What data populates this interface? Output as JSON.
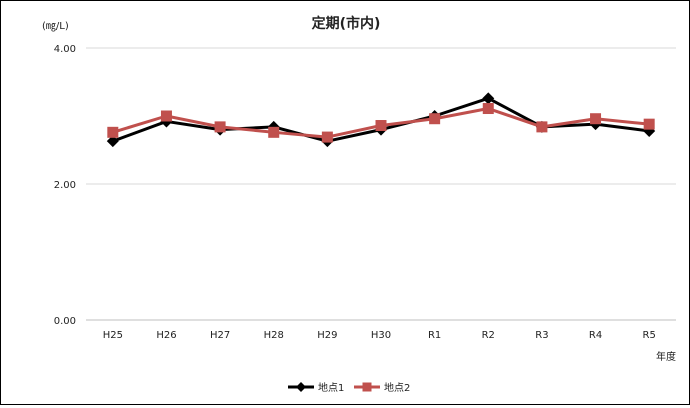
{
  "chart_data": {
    "type": "line",
    "title": "定期(市内)",
    "unit_label": "(㎎/L)",
    "xlabel": "年度",
    "ylabel": "",
    "categories": [
      "H25",
      "H26",
      "H27",
      "H28",
      "H29",
      "H30",
      "R1",
      "R2",
      "R3",
      "R4",
      "R5"
    ],
    "ylim": [
      0,
      4.0
    ],
    "yticks": [
      "0.00",
      "2.00",
      "4.00"
    ],
    "grid": true,
    "legend": "bottom",
    "series": [
      {
        "name": "地点1",
        "color": "#000000",
        "marker": "diamond",
        "values": [
          2.63,
          2.92,
          2.8,
          2.84,
          2.63,
          2.8,
          3.0,
          3.26,
          2.84,
          2.88,
          2.78
        ]
      },
      {
        "name": "地点2",
        "color": "#c0504d",
        "marker": "square",
        "values": [
          2.76,
          3.0,
          2.84,
          2.76,
          2.69,
          2.86,
          2.96,
          3.11,
          2.84,
          2.96,
          2.88
        ]
      }
    ]
  }
}
